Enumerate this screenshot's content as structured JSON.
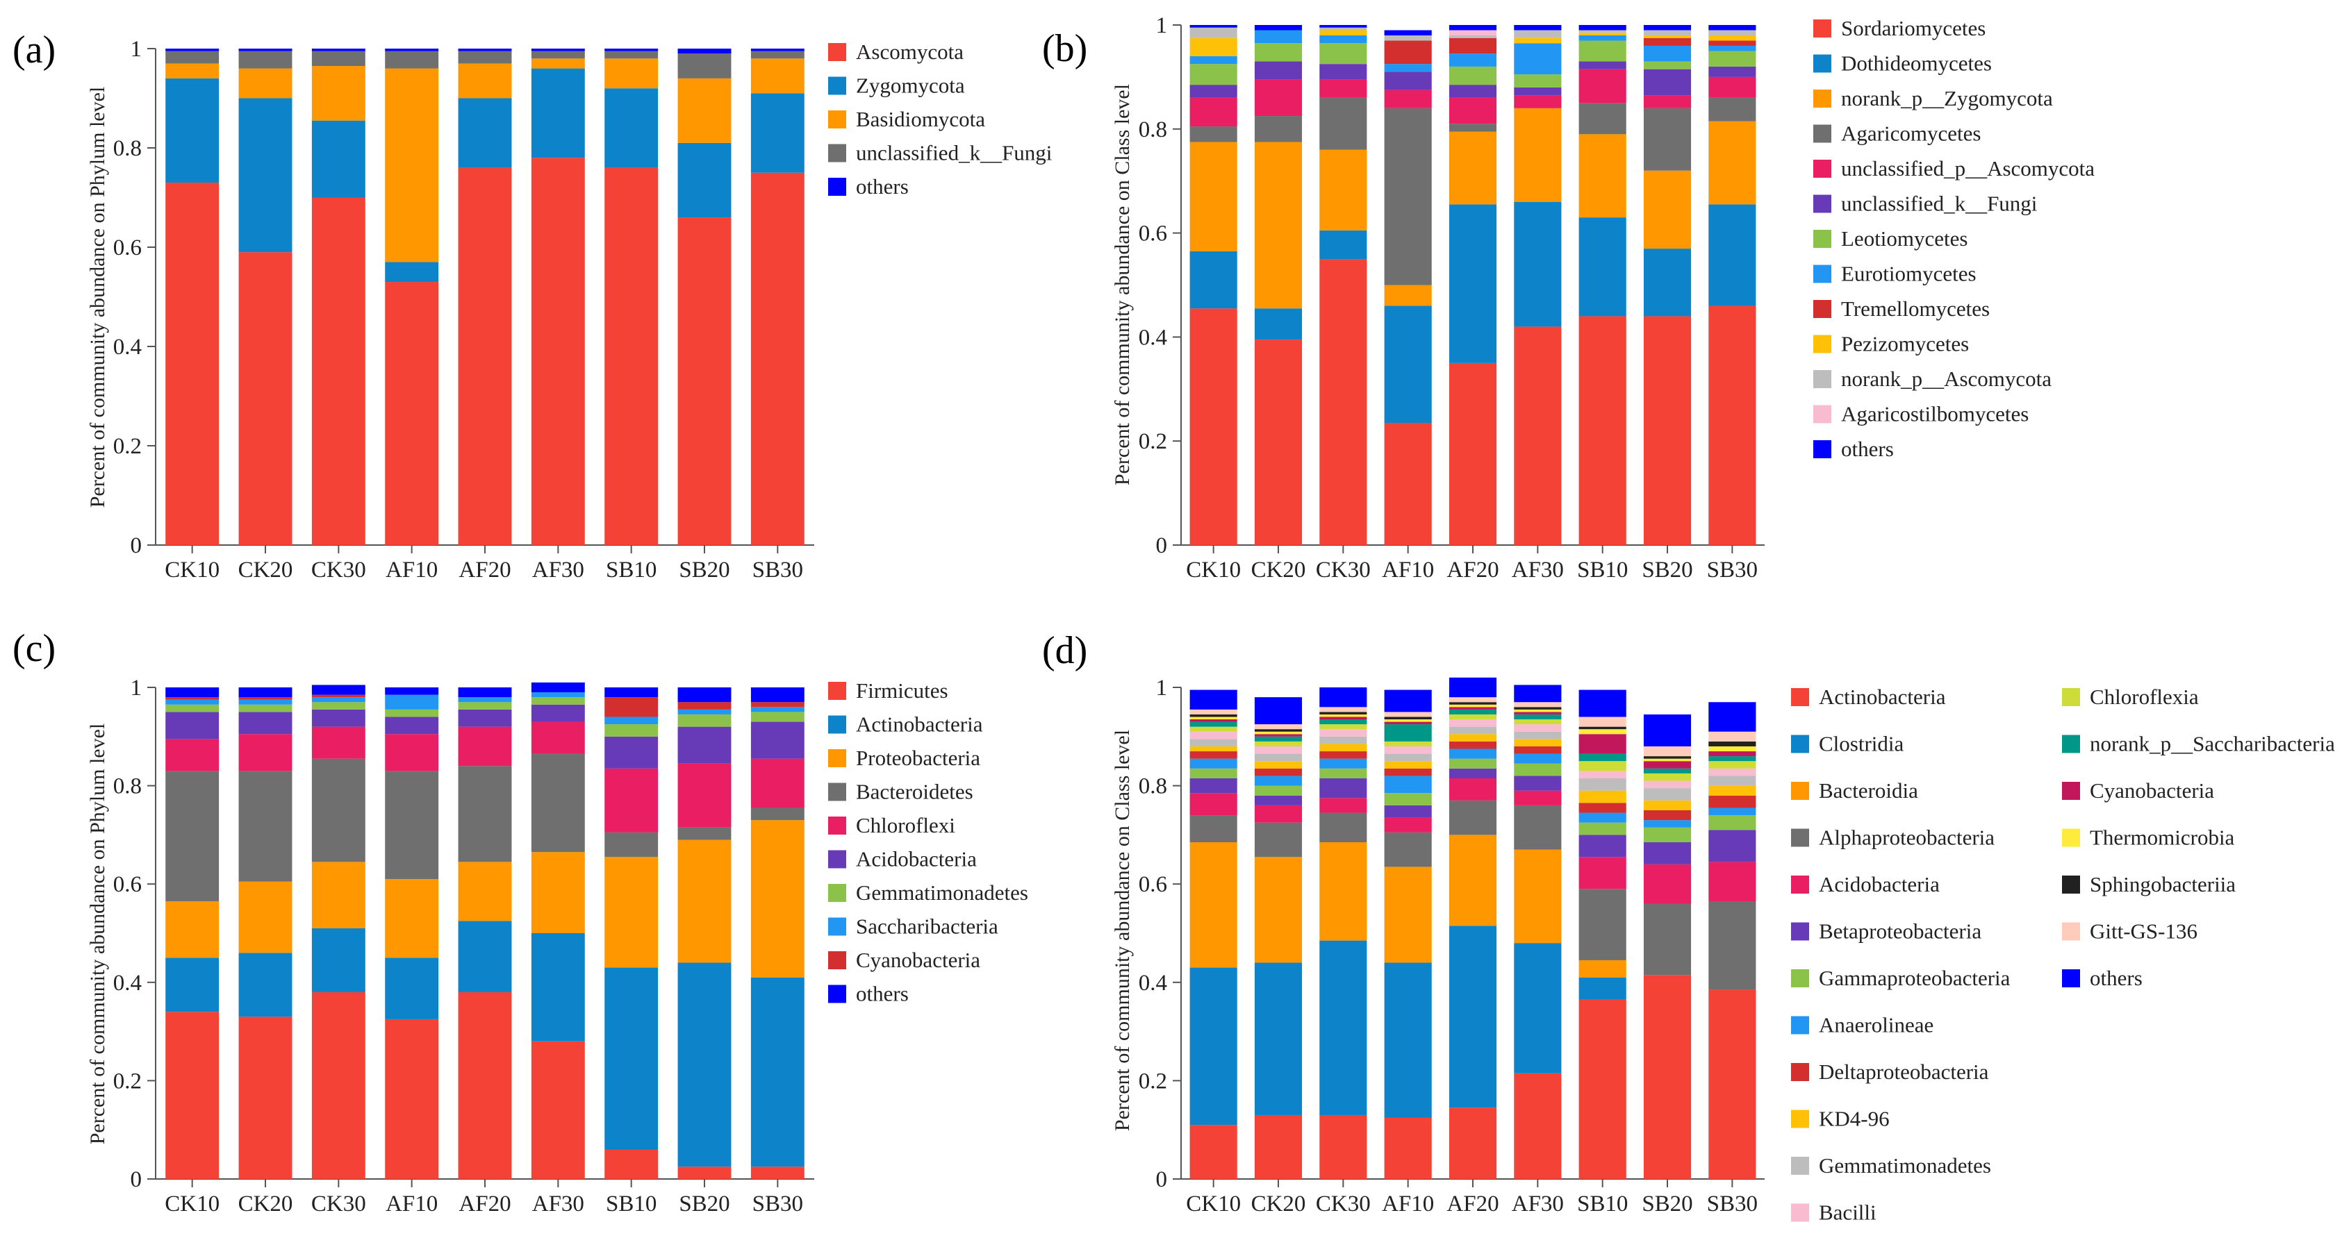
{
  "chart_data": [
    {
      "panel": "(a)",
      "type": "bar",
      "stacked": true,
      "ylabel": "Percent of community abundance on Phylum level",
      "ylim": [
        0,
        1
      ],
      "yticks": [
        "0",
        "0.2",
        "0.4",
        "0.6",
        "0.8",
        "1"
      ],
      "categories": [
        "CK10",
        "CK20",
        "CK30",
        "AF10",
        "AF20",
        "AF30",
        "SB10",
        "SB20",
        "SB30"
      ],
      "series": [
        {
          "name": "Ascomycota",
          "color": "#F44336",
          "values": [
            0.73,
            0.59,
            0.7,
            0.53,
            0.76,
            0.78,
            0.76,
            0.66,
            0.75
          ]
        },
        {
          "name": "Zygomycota",
          "color": "#0D84C9",
          "values": [
            0.21,
            0.31,
            0.155,
            0.04,
            0.14,
            0.18,
            0.16,
            0.15,
            0.16
          ]
        },
        {
          "name": "Basidiomycota",
          "color": "#FF9800",
          "values": [
            0.03,
            0.06,
            0.11,
            0.39,
            0.07,
            0.02,
            0.06,
            0.13,
            0.07
          ]
        },
        {
          "name": "unclassified_k__Fungi",
          "color": "#6F6F6F",
          "values": [
            0.025,
            0.035,
            0.03,
            0.035,
            0.025,
            0.015,
            0.015,
            0.05,
            0.015
          ]
        },
        {
          "name": "others",
          "color": "#0000FF",
          "values": [
            0.005,
            0.005,
            0.005,
            0.005,
            0.005,
            0.005,
            0.005,
            0.01,
            0.005
          ]
        }
      ]
    },
    {
      "panel": "(b)",
      "type": "bar",
      "stacked": true,
      "ylabel": "Percent of community abundance on Class level",
      "ylim": [
        0,
        1
      ],
      "yticks": [
        "0",
        "0.2",
        "0.4",
        "0.6",
        "0.8",
        "1"
      ],
      "categories": [
        "CK10",
        "CK20",
        "CK30",
        "AF10",
        "AF20",
        "AF30",
        "SB10",
        "SB20",
        "SB30"
      ],
      "series": [
        {
          "name": "Sordariomycetes",
          "color": "#F44336",
          "values": [
            0.455,
            0.395,
            0.55,
            0.235,
            0.35,
            0.42,
            0.44,
            0.44,
            0.46
          ]
        },
        {
          "name": "Dothideomycetes",
          "color": "#0D84C9",
          "values": [
            0.11,
            0.06,
            0.055,
            0.225,
            0.305,
            0.24,
            0.19,
            0.13,
            0.195
          ]
        },
        {
          "name": "norank_p__Zygomycota",
          "color": "#FF9800",
          "values": [
            0.21,
            0.32,
            0.155,
            0.04,
            0.14,
            0.18,
            0.16,
            0.15,
            0.16
          ]
        },
        {
          "name": "Agaricomycetes",
          "color": "#6F6F6F",
          "values": [
            0.03,
            0.05,
            0.1,
            0.34,
            0.015,
            0.0,
            0.06,
            0.12,
            0.045
          ]
        },
        {
          "name": "unclassified_p__Ascomycota",
          "color": "#E91E63",
          "values": [
            0.055,
            0.07,
            0.035,
            0.035,
            0.05,
            0.025,
            0.065,
            0.025,
            0.04
          ]
        },
        {
          "name": "unclassified_k__Fungi",
          "color": "#673AB7",
          "values": [
            0.025,
            0.035,
            0.03,
            0.035,
            0.025,
            0.015,
            0.015,
            0.05,
            0.02
          ]
        },
        {
          "name": "Leotiomycetes",
          "color": "#8BC34A",
          "values": [
            0.04,
            0.035,
            0.04,
            0.0,
            0.035,
            0.025,
            0.04,
            0.015,
            0.03
          ]
        },
        {
          "name": "Eurotiomycetes",
          "color": "#2196F3",
          "values": [
            0.015,
            0.025,
            0.015,
            0.015,
            0.025,
            0.06,
            0.01,
            0.03,
            0.01
          ]
        },
        {
          "name": "Tremellomycetes",
          "color": "#D32F2F",
          "values": [
            0.0,
            0.0,
            0.0,
            0.045,
            0.03,
            0.0,
            0.0,
            0.015,
            0.01
          ]
        },
        {
          "name": "Pezizomycetes",
          "color": "#FFC107",
          "values": [
            0.035,
            0.0,
            0.01,
            0.0,
            0.0,
            0.01,
            0.005,
            0.005,
            0.01
          ]
        },
        {
          "name": "norank_p__Ascomycota",
          "color": "#BDBDBD",
          "values": [
            0.02,
            0.0,
            0.005,
            0.01,
            0.005,
            0.015,
            0.005,
            0.01,
            0.01
          ]
        },
        {
          "name": "Agaricostilbomycetes",
          "color": "#F8BBD0",
          "values": [
            0.0,
            0.0,
            0.0,
            0.0,
            0.01,
            0.0,
            0.0,
            0.0,
            0.0
          ]
        },
        {
          "name": "others",
          "color": "#0000FF",
          "values": [
            0.005,
            0.01,
            0.005,
            0.01,
            0.01,
            0.01,
            0.01,
            0.01,
            0.01
          ]
        }
      ]
    },
    {
      "panel": "(c)",
      "type": "bar",
      "stacked": true,
      "ylabel": "Percent of community abundance on Phylum level",
      "ylim": [
        0,
        1
      ],
      "yticks": [
        "0",
        "0.2",
        "0.4",
        "0.6",
        "0.8",
        "1"
      ],
      "categories": [
        "CK10",
        "CK20",
        "CK30",
        "AF10",
        "AF20",
        "AF30",
        "SB10",
        "SB20",
        "SB30"
      ],
      "series": [
        {
          "name": "Firmicutes",
          "color": "#F44336",
          "values": [
            0.34,
            0.33,
            0.38,
            0.325,
            0.38,
            0.28,
            0.06,
            0.025,
            0.025
          ]
        },
        {
          "name": "Actinobacteria",
          "color": "#0D84C9",
          "values": [
            0.11,
            0.13,
            0.13,
            0.125,
            0.145,
            0.22,
            0.37,
            0.415,
            0.385
          ]
        },
        {
          "name": "Proteobacteria",
          "color": "#FF9800",
          "values": [
            0.115,
            0.145,
            0.135,
            0.16,
            0.12,
            0.165,
            0.225,
            0.25,
            0.32
          ]
        },
        {
          "name": "Bacteroidetes",
          "color": "#6F6F6F",
          "values": [
            0.265,
            0.225,
            0.21,
            0.22,
            0.195,
            0.2,
            0.05,
            0.025,
            0.025
          ]
        },
        {
          "name": "Chloroflexi",
          "color": "#E91E63",
          "values": [
            0.065,
            0.075,
            0.065,
            0.075,
            0.08,
            0.065,
            0.13,
            0.13,
            0.1
          ]
        },
        {
          "name": "Acidobacteria",
          "color": "#673AB7",
          "values": [
            0.055,
            0.045,
            0.035,
            0.035,
            0.035,
            0.035,
            0.065,
            0.075,
            0.075
          ]
        },
        {
          "name": "Gemmatimonadetes",
          "color": "#8BC34A",
          "values": [
            0.015,
            0.015,
            0.015,
            0.015,
            0.015,
            0.015,
            0.025,
            0.025,
            0.02
          ]
        },
        {
          "name": "Saccharibacteria",
          "color": "#2196F3",
          "values": [
            0.01,
            0.01,
            0.01,
            0.03,
            0.01,
            0.01,
            0.015,
            0.01,
            0.01
          ]
        },
        {
          "name": "Cyanobacteria",
          "color": "#D32F2F",
          "values": [
            0.005,
            0.005,
            0.005,
            0.0,
            0.0,
            0.0,
            0.04,
            0.015,
            0.01
          ]
        },
        {
          "name": "others",
          "color": "#0000FF",
          "values": [
            0.02,
            0.02,
            0.02,
            0.015,
            0.02,
            0.02,
            0.02,
            0.03,
            0.03
          ]
        }
      ]
    },
    {
      "panel": "(d)",
      "type": "bar",
      "stacked": true,
      "ylabel": "Percent of community abundance on Class level",
      "ylim": [
        0,
        1
      ],
      "yticks": [
        "0",
        "0.2",
        "0.4",
        "0.6",
        "0.8",
        "1"
      ],
      "categories": [
        "CK10",
        "CK20",
        "CK30",
        "AF10",
        "AF20",
        "AF30",
        "SB10",
        "SB20",
        "SB30"
      ],
      "series": [
        {
          "name": "Actinobacteria",
          "color": "#F44336",
          "values": [
            0.11,
            0.13,
            0.13,
            0.125,
            0.145,
            0.215,
            0.365,
            0.415,
            0.385
          ]
        },
        {
          "name": "Clostridia",
          "color": "#0D84C9",
          "values": [
            0.32,
            0.31,
            0.355,
            0.315,
            0.37,
            0.265,
            0.045,
            0.0,
            0.0
          ]
        },
        {
          "name": "Bacteroidia",
          "color": "#FF9800",
          "values": [
            0.255,
            0.215,
            0.2,
            0.195,
            0.185,
            0.19,
            0.035,
            0.0,
            0.0
          ]
        },
        {
          "name": "Alphaproteobacteria",
          "color": "#6F6F6F",
          "values": [
            0.055,
            0.07,
            0.06,
            0.07,
            0.07,
            0.09,
            0.145,
            0.145,
            0.18
          ]
        },
        {
          "name": "Acidobacteria",
          "color": "#E91E63",
          "values": [
            0.045,
            0.035,
            0.03,
            0.03,
            0.045,
            0.03,
            0.065,
            0.08,
            0.08
          ]
        },
        {
          "name": "Betaproteobacteria",
          "color": "#673AB7",
          "values": [
            0.03,
            0.02,
            0.04,
            0.025,
            0.02,
            0.03,
            0.045,
            0.045,
            0.065
          ]
        },
        {
          "name": "Gammaproteobacteria",
          "color": "#8BC34A",
          "values": [
            0.02,
            0.02,
            0.02,
            0.025,
            0.02,
            0.025,
            0.025,
            0.03,
            0.03
          ]
        },
        {
          "name": "Anaerolineae",
          "color": "#2196F3",
          "values": [
            0.02,
            0.02,
            0.02,
            0.035,
            0.02,
            0.02,
            0.02,
            0.015,
            0.015
          ]
        },
        {
          "name": "Deltaproteobacteria",
          "color": "#D32F2F",
          "values": [
            0.015,
            0.015,
            0.015,
            0.015,
            0.015,
            0.015,
            0.02,
            0.02,
            0.025
          ]
        },
        {
          "name": "KD4-96",
          "color": "#FFC107",
          "values": [
            0.01,
            0.015,
            0.015,
            0.015,
            0.015,
            0.015,
            0.025,
            0.02,
            0.02
          ]
        },
        {
          "name": "Gemmatimonadetes",
          "color": "#BDBDBD",
          "values": [
            0.015,
            0.015,
            0.015,
            0.015,
            0.015,
            0.015,
            0.025,
            0.025,
            0.02
          ]
        },
        {
          "name": "Bacilli",
          "color": "#F8BBD0",
          "values": [
            0.015,
            0.015,
            0.015,
            0.015,
            0.015,
            0.015,
            0.015,
            0.015,
            0.015
          ]
        },
        {
          "name": "Chloroflexia",
          "color": "#CDDC39",
          "values": [
            0.01,
            0.01,
            0.01,
            0.01,
            0.01,
            0.01,
            0.02,
            0.015,
            0.015
          ]
        },
        {
          "name": "norank_p__Saccharibacteria",
          "color": "#009688",
          "values": [
            0.01,
            0.01,
            0.01,
            0.035,
            0.01,
            0.01,
            0.015,
            0.01,
            0.01
          ]
        },
        {
          "name": "Cyanobacteria",
          "color": "#C2185B",
          "values": [
            0.005,
            0.005,
            0.005,
            0.005,
            0.005,
            0.005,
            0.04,
            0.015,
            0.01
          ]
        },
        {
          "name": "Thermomicrobia",
          "color": "#FFEB3B",
          "values": [
            0.005,
            0.005,
            0.005,
            0.005,
            0.005,
            0.005,
            0.01,
            0.005,
            0.01
          ]
        },
        {
          "name": "Sphingobacteriia",
          "color": "#212121",
          "values": [
            0.005,
            0.005,
            0.005,
            0.005,
            0.005,
            0.005,
            0.005,
            0.005,
            0.01
          ]
        },
        {
          "name": "Gitt-GS-136",
          "color": "#FFCCBC",
          "values": [
            0.01,
            0.01,
            0.01,
            0.01,
            0.01,
            0.01,
            0.02,
            0.02,
            0.02
          ]
        },
        {
          "name": "others",
          "color": "#0000FF",
          "values": [
            0.04,
            0.055,
            0.04,
            0.045,
            0.04,
            0.035,
            0.055,
            0.065,
            0.06
          ]
        }
      ]
    }
  ]
}
